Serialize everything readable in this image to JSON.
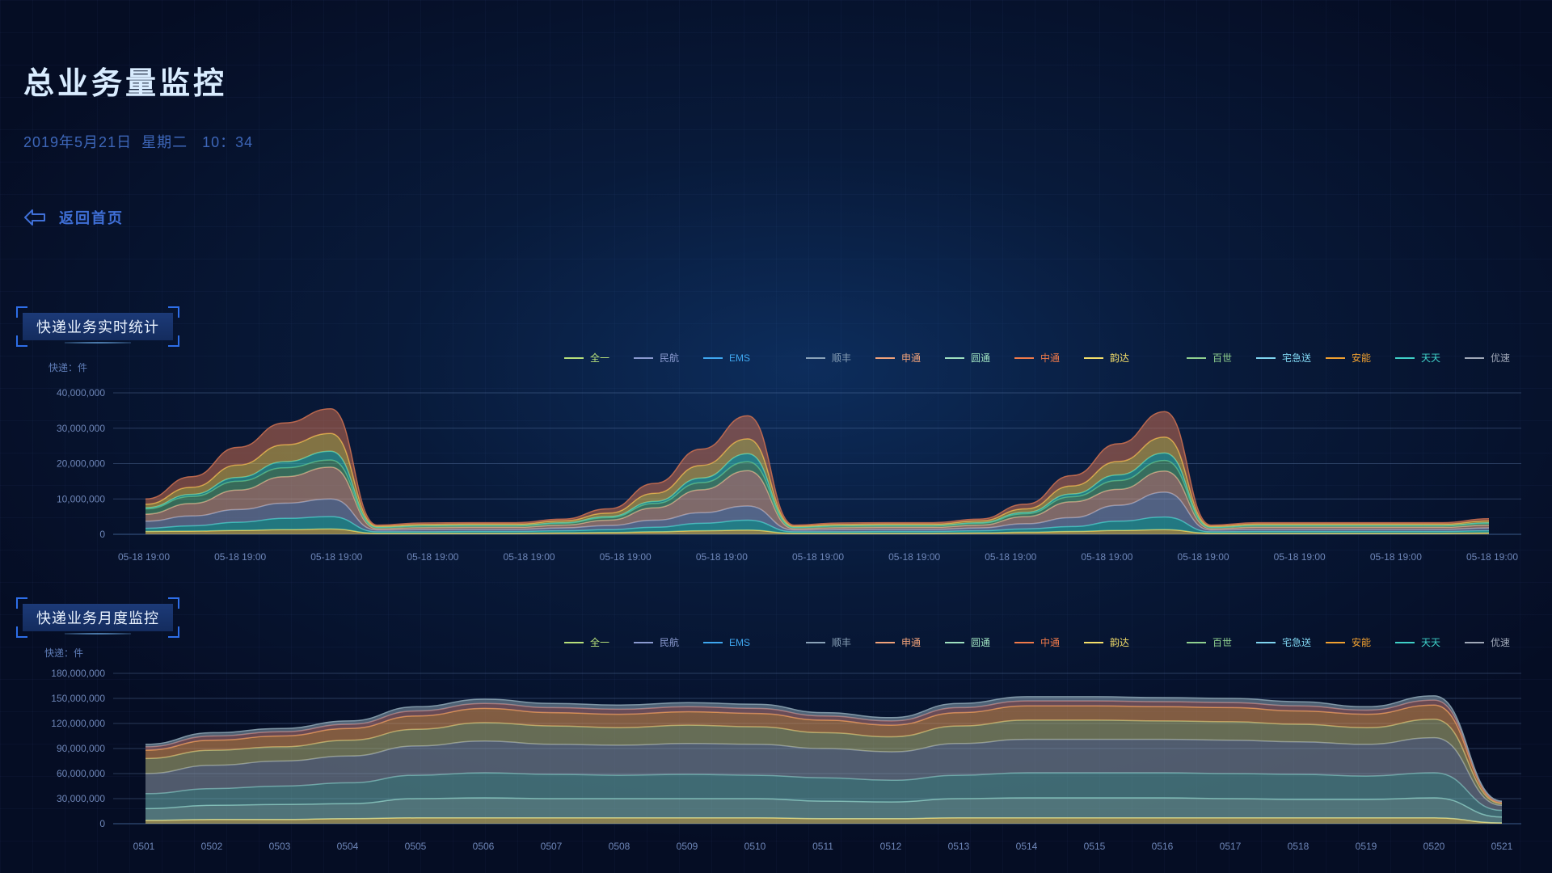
{
  "header": {
    "title": "总业务量监控",
    "datetime": "2019年5月21日  星期二   10：34",
    "back_label": "返回首页"
  },
  "colors": {
    "background": "#081a3a",
    "accent": "#3f6fd6"
  },
  "chart_data": [
    {
      "type": "area",
      "title": "快递业务实时统计",
      "ylabel": "快递：件",
      "ylim": [
        0,
        40000000
      ],
      "yticks": [
        "0",
        "10,000,000",
        "20,000,000",
        "30,000,000",
        "40,000,000"
      ],
      "ytick_values": [
        0,
        10000000,
        20000000,
        30000000,
        40000000
      ],
      "categories": [
        "05-18  19:00",
        "05-18  19:00",
        "05-18  19:00",
        "05-18  19:00",
        "05-18  19:00",
        "05-18  19:00",
        "05-18  19:00",
        "05-18  19:00",
        "05-18  19:00",
        "05-18  19:00",
        "05-18  19:00",
        "05-18  19:00",
        "05-18  19:00",
        "05-18  19:00",
        "05-18  19:00"
      ],
      "legend": [
        {
          "name": "全一",
          "color": "#b7e07a"
        },
        {
          "name": "民航",
          "color": "#8a9ad0"
        },
        {
          "name": "EMS",
          "color": "#3fa7f0"
        },
        {
          "name": "顺丰",
          "color": "#8aa2b8"
        },
        {
          "name": "申通",
          "color": "#f0a27a"
        },
        {
          "name": "圆通",
          "color": "#9ee0c0"
        },
        {
          "name": "中通",
          "color": "#f07a4a"
        },
        {
          "name": "韵达",
          "color": "#f5df6a"
        },
        {
          "name": "百世",
          "color": "#8fd08f"
        },
        {
          "name": "宅急送",
          "color": "#7fd4f0"
        },
        {
          "name": "安能",
          "color": "#f0a030"
        },
        {
          "name": "天天",
          "color": "#3fd0c8"
        },
        {
          "name": "优速",
          "color": "#a0a8b8"
        }
      ],
      "layers": [
        {
          "color": "#f5d25a",
          "values": [
            0.8,
            0.9,
            1.1,
            1.3,
            1.5,
            0.3,
            0.3,
            0.3,
            0.3,
            0.4,
            0.5,
            0.7,
            1.0,
            1.2,
            0.3,
            0.3,
            0.3,
            0.3,
            0.4,
            0.6,
            0.8,
            1.1,
            1.3,
            0.3,
            0.3,
            0.3,
            0.3,
            0.3,
            0.3,
            0.4
          ]
        },
        {
          "color": "#38c8c0",
          "values": [
            0.9,
            1.5,
            2.3,
            3.2,
            3.5,
            0.4,
            0.4,
            0.5,
            0.5,
            0.6,
            0.8,
            1.3,
            2.1,
            2.8,
            0.4,
            0.4,
            0.5,
            0.5,
            0.6,
            0.9,
            1.4,
            2.6,
            3.6,
            0.4,
            0.5,
            0.5,
            0.5,
            0.5,
            0.5,
            0.6
          ]
        },
        {
          "color": "#8e9dc0",
          "values": [
            2.0,
            2.8,
            3.6,
            4.3,
            5.0,
            0.5,
            0.6,
            0.6,
            0.6,
            0.8,
            1.2,
            2.0,
            3.0,
            4.0,
            0.5,
            0.6,
            0.6,
            0.6,
            0.8,
            1.5,
            2.5,
            4.5,
            7.0,
            0.5,
            0.6,
            0.6,
            0.6,
            0.6,
            0.6,
            0.8
          ]
        },
        {
          "color": "#e0a88a",
          "values": [
            2.0,
            3.5,
            5.5,
            7.5,
            9.0,
            0.4,
            0.6,
            0.6,
            0.6,
            0.8,
            1.5,
            3.5,
            6.5,
            10.0,
            0.4,
            0.6,
            0.6,
            0.6,
            0.8,
            2.0,
            4.5,
            4.5,
            6.0,
            0.4,
            0.6,
            0.6,
            0.6,
            0.6,
            0.6,
            0.8
          ]
        },
        {
          "color": "#5fb07a",
          "values": [
            1.5,
            2.0,
            2.5,
            2.5,
            2.0,
            0.3,
            0.4,
            0.4,
            0.4,
            0.5,
            0.7,
            1.2,
            2.0,
            2.5,
            0.3,
            0.4,
            0.4,
            0.4,
            0.5,
            0.8,
            1.4,
            2.5,
            3.0,
            0.3,
            0.4,
            0.4,
            0.4,
            0.4,
            0.4,
            0.5
          ]
        },
        {
          "color": "#3fc8b8",
          "values": [
            0.3,
            0.6,
            1.1,
            1.7,
            2.5,
            0.1,
            0.1,
            0.1,
            0.1,
            0.2,
            0.3,
            0.6,
            1.3,
            2.3,
            0.1,
            0.1,
            0.1,
            0.1,
            0.2,
            0.4,
            0.8,
            1.6,
            2.1,
            0.1,
            0.1,
            0.1,
            0.1,
            0.1,
            0.1,
            0.2
          ]
        },
        {
          "color": "#e8c050",
          "values": [
            1.0,
            2.0,
            3.5,
            4.8,
            5.0,
            0.3,
            0.4,
            0.4,
            0.4,
            0.5,
            1.0,
            2.3,
            3.6,
            4.2,
            0.3,
            0.4,
            0.4,
            0.4,
            0.5,
            1.0,
            2.3,
            3.8,
            4.5,
            0.3,
            0.4,
            0.4,
            0.4,
            0.4,
            0.4,
            0.5
          ]
        },
        {
          "color": "#c86e50",
          "values": [
            1.5,
            3.0,
            5.0,
            6.2,
            7.0,
            0.3,
            0.4,
            0.4,
            0.4,
            0.5,
            1.2,
            2.8,
            4.6,
            6.5,
            0.3,
            0.4,
            0.4,
            0.4,
            0.5,
            1.3,
            2.9,
            5.0,
            7.2,
            0.3,
            0.4,
            0.4,
            0.4,
            0.4,
            0.4,
            0.6
          ]
        }
      ]
    },
    {
      "type": "area",
      "title": "快递业务月度监控",
      "ylabel": "快递：件",
      "ylim": [
        0,
        180000000
      ],
      "yticks": [
        "0",
        "30,000,000",
        "60,000,000",
        "90,000,000",
        "120,000,000",
        "150,000,000",
        "180,000,000"
      ],
      "ytick_values": [
        0,
        30000000,
        60000000,
        90000000,
        120000000,
        150000000,
        180000000
      ],
      "categories": [
        "0501",
        "0502",
        "0503",
        "0504",
        "0505",
        "0506",
        "0507",
        "0508",
        "0509",
        "0510",
        "0511",
        "0512",
        "0513",
        "0514",
        "0515",
        "0516",
        "0517",
        "0518",
        "0519",
        "0520",
        "0521"
      ],
      "legend": [
        {
          "name": "全一",
          "color": "#b7e07a"
        },
        {
          "name": "民航",
          "color": "#8a9ad0"
        },
        {
          "name": "EMS",
          "color": "#3fa7f0"
        },
        {
          "name": "顺丰",
          "color": "#8aa2b8"
        },
        {
          "name": "申通",
          "color": "#f0a27a"
        },
        {
          "name": "圆通",
          "color": "#9ee0c0"
        },
        {
          "name": "中通",
          "color": "#f07a4a"
        },
        {
          "name": "韵达",
          "color": "#f5df6a"
        },
        {
          "name": "百世",
          "color": "#8fd08f"
        },
        {
          "name": "宅急送",
          "color": "#7fd4f0"
        },
        {
          "name": "安能",
          "color": "#f0a030"
        },
        {
          "name": "天天",
          "color": "#3fd0c8"
        },
        {
          "name": "优速",
          "color": "#a0a8b8"
        }
      ],
      "layers": [
        {
          "color": "#f5e07a",
          "values": [
            4,
            5,
            5,
            6,
            7,
            7,
            7,
            7,
            7,
            7,
            6,
            6,
            7,
            7,
            7,
            7,
            7,
            7,
            7,
            7,
            1
          ]
        },
        {
          "color": "#8ec8c0",
          "values": [
            14,
            17,
            18,
            18,
            23,
            24,
            23,
            23,
            23,
            23,
            21,
            20,
            23,
            24,
            24,
            24,
            23,
            22,
            22,
            24,
            7
          ]
        },
        {
          "color": "#6fb4b0",
          "values": [
            18,
            20,
            22,
            25,
            28,
            30,
            29,
            28,
            29,
            28,
            28,
            26,
            28,
            30,
            30,
            30,
            30,
            30,
            28,
            30,
            8
          ]
        },
        {
          "color": "#8e9aa8",
          "values": [
            24,
            28,
            30,
            32,
            35,
            38,
            36,
            36,
            37,
            37,
            35,
            34,
            38,
            40,
            40,
            40,
            40,
            39,
            38,
            42,
            6
          ]
        },
        {
          "color": "#b6b878",
          "values": [
            18,
            18,
            17,
            19,
            20,
            22,
            22,
            21,
            22,
            21,
            19,
            18,
            21,
            23,
            23,
            22,
            22,
            21,
            20,
            22,
            2
          ]
        },
        {
          "color": "#e89a55",
          "values": [
            10,
            12,
            13,
            14,
            16,
            17,
            16,
            16,
            16,
            16,
            15,
            14,
            16,
            17,
            17,
            17,
            17,
            16,
            16,
            17,
            1
          ]
        },
        {
          "color": "#b87a78",
          "values": [
            4,
            5,
            5,
            5,
            6,
            6,
            6,
            6,
            6,
            6,
            5,
            5,
            6,
            6,
            6,
            6,
            6,
            6,
            5,
            6,
            1
          ]
        },
        {
          "color": "#8aa2b0",
          "values": [
            3,
            4,
            4,
            4,
            5,
            5,
            5,
            5,
            5,
            5,
            4,
            4,
            5,
            5,
            5,
            5,
            5,
            5,
            4,
            5,
            1
          ]
        }
      ]
    }
  ]
}
